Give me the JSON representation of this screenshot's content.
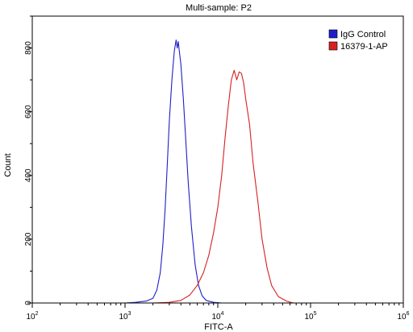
{
  "chart_data": {
    "type": "line",
    "title": "Multi-sample: P2",
    "xlabel": "FITC-A",
    "ylabel": "Count",
    "x_scale": "log",
    "xlim": [
      100,
      1000000
    ],
    "ylim": [
      0,
      900
    ],
    "x_ticks": [
      {
        "value": 100,
        "base": "10",
        "exp": "2"
      },
      {
        "value": 1000,
        "base": "10",
        "exp": "3"
      },
      {
        "value": 10000,
        "base": "10",
        "exp": "4"
      },
      {
        "value": 100000,
        "base": "10",
        "exp": "5"
      },
      {
        "value": 1000000,
        "base": "10",
        "exp": "6"
      }
    ],
    "y_ticks": [
      0,
      200,
      400,
      600,
      800
    ],
    "grid": false,
    "legend_position": "top-right",
    "series": [
      {
        "name": "IgG Control",
        "color": "#1f1fc8",
        "points": [
          [
            1000,
            0
          ],
          [
            1300,
            2
          ],
          [
            1700,
            6
          ],
          [
            2000,
            15
          ],
          [
            2200,
            40
          ],
          [
            2400,
            95
          ],
          [
            2550,
            180
          ],
          [
            2700,
            290
          ],
          [
            2850,
            430
          ],
          [
            3000,
            570
          ],
          [
            3200,
            700
          ],
          [
            3400,
            790
          ],
          [
            3550,
            825
          ],
          [
            3650,
            800
          ],
          [
            3750,
            820
          ],
          [
            3850,
            790
          ],
          [
            4000,
            750
          ],
          [
            4250,
            640
          ],
          [
            4500,
            520
          ],
          [
            4800,
            380
          ],
          [
            5200,
            240
          ],
          [
            5700,
            120
          ],
          [
            6200,
            55
          ],
          [
            6800,
            22
          ],
          [
            7500,
            8
          ],
          [
            9000,
            2
          ],
          [
            11000,
            0
          ]
        ]
      },
      {
        "name": "16379-1-AP",
        "color": "#d82020",
        "points": [
          [
            2000,
            0
          ],
          [
            3000,
            2
          ],
          [
            4000,
            8
          ],
          [
            5000,
            25
          ],
          [
            6000,
            55
          ],
          [
            7000,
            95
          ],
          [
            8000,
            150
          ],
          [
            9000,
            220
          ],
          [
            10000,
            300
          ],
          [
            11000,
            400
          ],
          [
            12000,
            520
          ],
          [
            13000,
            620
          ],
          [
            14000,
            700
          ],
          [
            15000,
            730
          ],
          [
            16000,
            700
          ],
          [
            17000,
            725
          ],
          [
            18000,
            720
          ],
          [
            19000,
            690
          ],
          [
            20000,
            640
          ],
          [
            22000,
            560
          ],
          [
            24000,
            440
          ],
          [
            27000,
            320
          ],
          [
            30000,
            200
          ],
          [
            34000,
            110
          ],
          [
            38000,
            55
          ],
          [
            45000,
            20
          ],
          [
            55000,
            6
          ],
          [
            65000,
            0
          ]
        ]
      }
    ]
  }
}
